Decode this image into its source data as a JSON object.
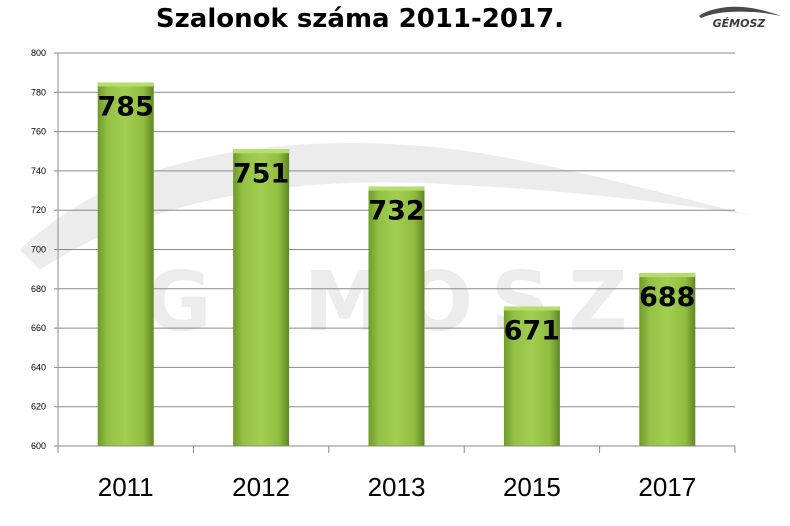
{
  "chart_data": {
    "type": "bar",
    "title": "Szalonok száma 2011-2017.",
    "categories": [
      "2011",
      "2012",
      "2013",
      "2015",
      "2017"
    ],
    "values": [
      785,
      751,
      732,
      671,
      688
    ],
    "data_labels": [
      "785",
      "751",
      "732",
      "671",
      "688"
    ],
    "ylim": [
      600,
      800
    ],
    "yticks": [
      "600",
      "620",
      "640",
      "660",
      "680",
      "700",
      "720",
      "740",
      "760",
      "780",
      "800"
    ],
    "grid": true,
    "legend": "none",
    "bar_color": "#8ab83a",
    "watermark": "GÉMOSZ"
  },
  "logo": {
    "text": "GÉMOSZ",
    "color": "#4a4a4a"
  }
}
